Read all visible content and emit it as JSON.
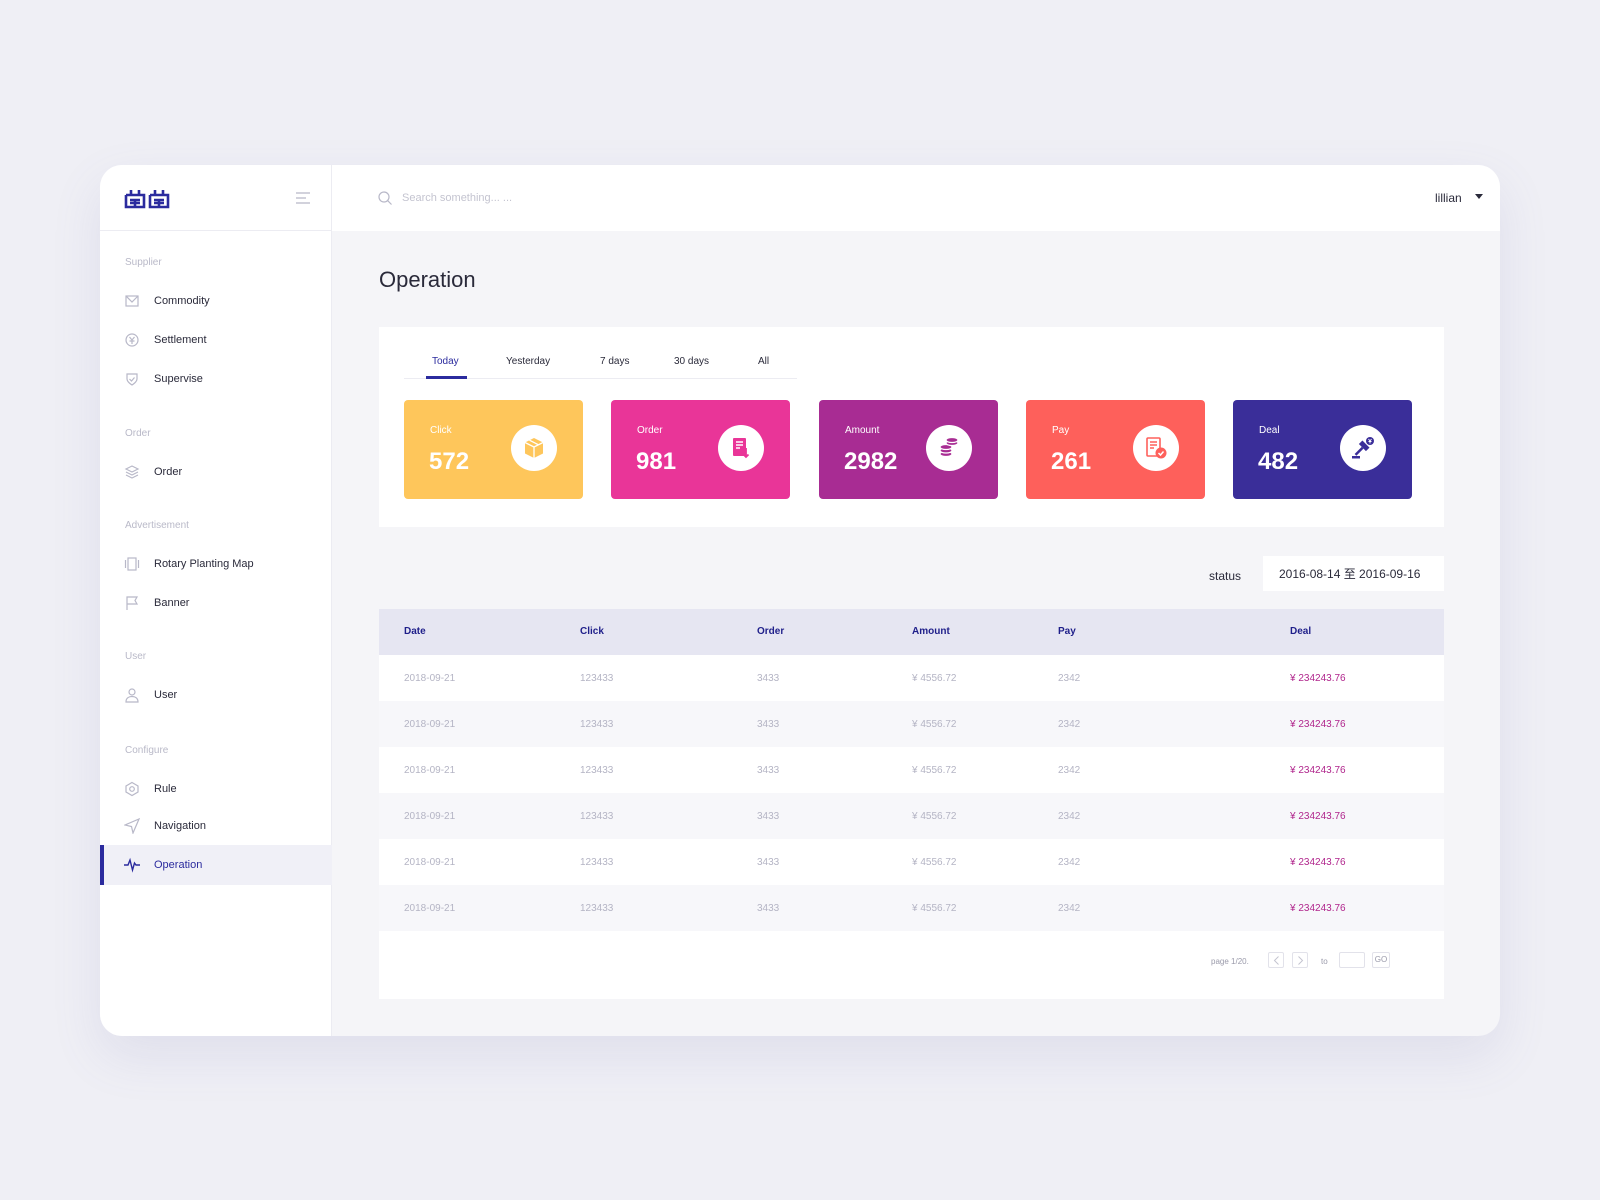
{
  "sidebar": {
    "sections": {
      "supplier": "Supplier",
      "order": "Order",
      "advertisement": "Advertisement",
      "user": "User",
      "configure": "Configure"
    },
    "items": {
      "commodity": "Commodity",
      "settlement": "Settlement",
      "supervise": "Supervise",
      "order": "Order",
      "rotary": "Rotary Planting Map",
      "banner": "Banner",
      "user": "User",
      "rule": "Rule",
      "navigation": "Navigation",
      "operation": "Operation"
    }
  },
  "topbar": {
    "search_placeholder": "Search something... ...",
    "username": "lillian"
  },
  "page": {
    "title": "Operation",
    "tabs": [
      "Today",
      "Yesterday",
      "7 days",
      "30 days",
      "All"
    ]
  },
  "cards": [
    {
      "label": "Click",
      "value": "572",
      "color": "#fec65b",
      "icon": "box-icon"
    },
    {
      "label": "Order",
      "value": "981",
      "color": "#e93598",
      "icon": "receipt-download-icon"
    },
    {
      "label": "Amount",
      "value": "2982",
      "color": "#a82c93",
      "icon": "coins-icon"
    },
    {
      "label": "Pay",
      "value": "261",
      "color": "#fe605b",
      "icon": "bill-check-icon"
    },
    {
      "label": "Deal",
      "value": "482",
      "color": "#3a2e99",
      "icon": "gavel-yen-icon"
    }
  ],
  "filter": {
    "status_label": "status",
    "date_range": "2016-08-14 至 2016-09-16"
  },
  "table": {
    "headers": [
      "Date",
      "Click",
      "Order",
      "Amount",
      "Pay",
      "Deal"
    ],
    "rows": [
      [
        "2018-09-21",
        "123433",
        "3433",
        "¥ 4556.72",
        "2342",
        "¥ 234243.76"
      ],
      [
        "2018-09-21",
        "123433",
        "3433",
        "¥ 4556.72",
        "2342",
        "¥ 234243.76"
      ],
      [
        "2018-09-21",
        "123433",
        "3433",
        "¥ 4556.72",
        "2342",
        "¥ 234243.76"
      ],
      [
        "2018-09-21",
        "123433",
        "3433",
        "¥ 4556.72",
        "2342",
        "¥ 234243.76"
      ],
      [
        "2018-09-21",
        "123433",
        "3433",
        "¥ 4556.72",
        "2342",
        "¥ 234243.76"
      ],
      [
        "2018-09-21",
        "123433",
        "3433",
        "¥ 4556.72",
        "2342",
        "¥ 234243.76"
      ]
    ]
  },
  "pagination": {
    "page_text": "page 1/20.",
    "to_label": "to",
    "go_label": "GO"
  },
  "colors": {
    "accent": "#2b2b9e",
    "deal_text": "#b0258c"
  }
}
